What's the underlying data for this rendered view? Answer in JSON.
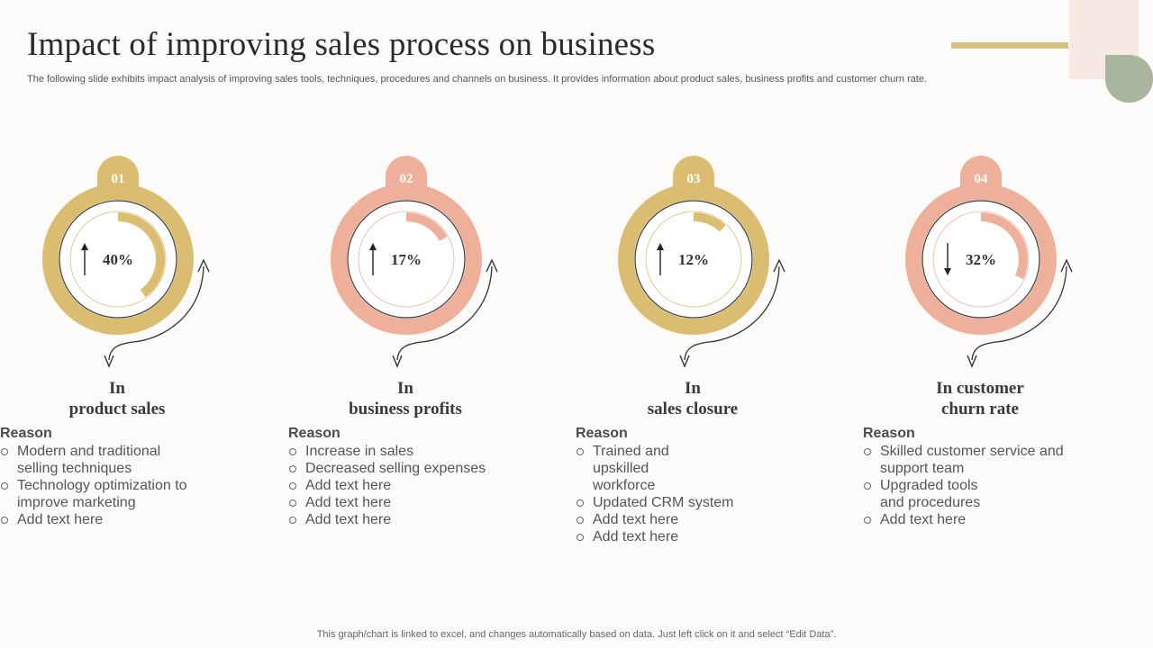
{
  "header": {
    "title": "Impact of improving sales process on business",
    "subtitle": "The following slide exhibits impact analysis of improving sales tools, techniques, procedures and channels on business. It provides information about product sales, business profits and customer churn rate."
  },
  "colors": {
    "gold": "#dbbd72",
    "salmon": "#efb09b",
    "dark": "#333333"
  },
  "items": [
    {
      "number": "01",
      "value_label": "40%",
      "value": 40,
      "direction": "up",
      "color": "#dbbd72",
      "heading_line1": "In",
      "heading_line2": "product sales",
      "reason_title": "Reason",
      "reasons": [
        "Modern and traditional selling techniques",
        "Technology  optimization to improve marketing",
        "Add text here"
      ]
    },
    {
      "number": "02",
      "value_label": "17%",
      "value": 17,
      "direction": "up",
      "color": "#efb09b",
      "heading_line1": "In",
      "heading_line2": "business profits",
      "reason_title": "Reason",
      "reasons": [
        "Increase in sales",
        "Decreased selling expenses",
        "Add text here",
        "Add text here",
        "Add text here"
      ]
    },
    {
      "number": "03",
      "value_label": "12%",
      "value": 12,
      "direction": "up",
      "color": "#dbbd72",
      "heading_line1": "In",
      "heading_line2": "sales closure",
      "reason_title": "Reason",
      "reasons": [
        "Trained and upskilled workforce",
        "Updated CRM system",
        "Add text here",
        "Add text here"
      ]
    },
    {
      "number": "04",
      "value_label": "32%",
      "value": 32,
      "direction": "down",
      "color": "#efb09b",
      "heading_line1": "In customer",
      "heading_line2": "churn rate",
      "reason_title": "Reason",
      "reasons": [
        "Skilled customer service and support team",
        "Upgraded tools and procedures",
        "Add text here"
      ]
    }
  ],
  "footer": {
    "note": "This graph/chart is linked to excel,  and changes automatically based on data. Just left click on it and select “Edit Data”."
  }
}
